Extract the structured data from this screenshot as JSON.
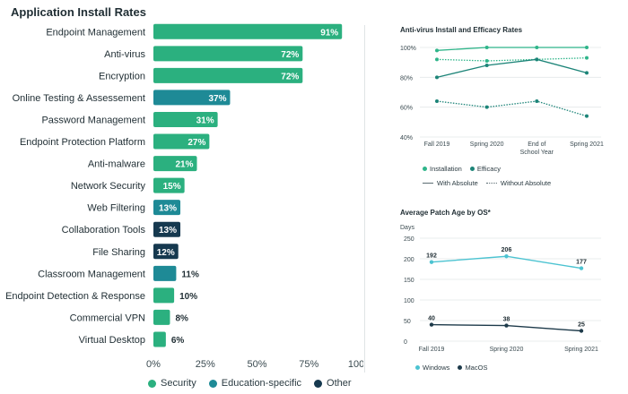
{
  "colors": {
    "security": "#2bb07f",
    "education": "#1e8a96",
    "other": "#16394f",
    "efficacy": "#1c8478",
    "installation": "#2fb58a",
    "windows": "#4cc3d1",
    "macos": "#1d3a4a",
    "grid": "#e3e7e9"
  },
  "chart_data": [
    {
      "type": "bar",
      "orientation": "horizontal",
      "title": "Application Install Rates",
      "categories": [
        "Endpoint Management",
        "Anti-virus",
        "Encryption",
        "Online Testing & Assessement",
        "Password Management",
        "Endpoint Protection Platform",
        "Anti-malware",
        "Network Security",
        "Web Filtering",
        "Collaboration Tools",
        "File Sharing",
        "Classroom Management",
        "Endpoint Detection & Response",
        "Commercial VPN",
        "Virtual Desktop"
      ],
      "values": [
        91,
        72,
        72,
        37,
        31,
        27,
        21,
        15,
        13,
        13,
        12,
        11,
        10,
        8,
        6
      ],
      "value_labels": [
        "91%",
        "72%",
        "72%",
        "37%",
        "31%",
        "27%",
        "21%",
        "15%",
        "13%",
        "13%",
        "12%",
        "11%",
        "10%",
        "8%",
        "6%"
      ],
      "groups": [
        "security",
        "security",
        "security",
        "education",
        "security",
        "security",
        "security",
        "security",
        "education",
        "other",
        "other",
        "education",
        "security",
        "security",
        "security"
      ],
      "xlim": [
        0,
        100
      ],
      "xticks": [
        "0%",
        "25%",
        "50%",
        "75%",
        "100%"
      ],
      "legend": [
        "Security",
        "Education-specific",
        "Other"
      ],
      "legend_position": "bottom"
    },
    {
      "type": "line",
      "title": "Anti-virus Install and Efficacy Rates",
      "categories": [
        "Fall 2019",
        "Spring 2020",
        "End of School Year",
        "Spring 2021"
      ],
      "yticks": [
        "100%",
        "80%",
        "60%",
        "40%"
      ],
      "ylim": [
        40,
        100
      ],
      "series": [
        {
          "name": "Installation",
          "line": "With Absolute",
          "values": [
            98,
            100,
            100,
            100
          ]
        },
        {
          "name": "Installation",
          "line": "Without Absolute",
          "values": [
            92,
            91,
            92,
            93
          ]
        },
        {
          "name": "Efficacy",
          "line": "With Absolute",
          "values": [
            80,
            88,
            92,
            83
          ]
        },
        {
          "name": "Efficacy",
          "line": "Without Absolute",
          "values": [
            64,
            60,
            64,
            54
          ]
        }
      ],
      "legend": [
        "Installation",
        "Efficacy",
        "With Absolute",
        "Without Absolute"
      ]
    },
    {
      "type": "line",
      "title": "Average Patch Age by OS*",
      "ylabel": "Days",
      "categories": [
        "Fall 2019",
        "Spring 2020",
        "Spring 2021"
      ],
      "yticks": [
        "250",
        "200",
        "150",
        "100",
        "50",
        "0"
      ],
      "ylim": [
        0,
        250
      ],
      "series": [
        {
          "name": "Windows",
          "values": [
            192,
            206,
            177
          ]
        },
        {
          "name": "MacOS",
          "values": [
            40,
            38,
            25
          ]
        }
      ],
      "legend": [
        "Windows",
        "MacOS"
      ]
    }
  ]
}
